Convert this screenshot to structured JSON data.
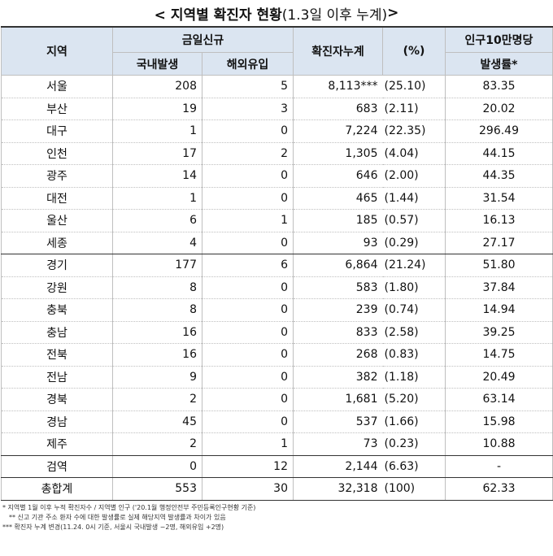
{
  "title": {
    "bold": "< 지역별 확진자 현황",
    "light": "(1.3일 이후 누계)",
    "tail": " >"
  },
  "header": {
    "region": "지역",
    "today_new": "금일신규",
    "domestic": "국내발생",
    "imported": "해외유입",
    "cumulative": "확진자누계",
    "percent": "(%)",
    "rate_line1": "인구10만명당",
    "rate_line2": "발생률*"
  },
  "rows": [
    {
      "region": "서울",
      "domestic": "208",
      "imported": "5",
      "cumulative": "8,113***",
      "percent": "(25.10)",
      "rate": "83.35"
    },
    {
      "region": "부산",
      "domestic": "19",
      "imported": "3",
      "cumulative": "683",
      "percent": "(2.11)",
      "rate": "20.02"
    },
    {
      "region": "대구",
      "domestic": "1",
      "imported": "0",
      "cumulative": "7,224",
      "percent": "(22.35)",
      "rate": "296.49"
    },
    {
      "region": "인천",
      "domestic": "17",
      "imported": "2",
      "cumulative": "1,305",
      "percent": "(4.04)",
      "rate": "44.15"
    },
    {
      "region": "광주",
      "domestic": "14",
      "imported": "0",
      "cumulative": "646",
      "percent": "(2.00)",
      "rate": "44.35"
    },
    {
      "region": "대전",
      "domestic": "1",
      "imported": "0",
      "cumulative": "465",
      "percent": "(1.44)",
      "rate": "31.54"
    },
    {
      "region": "울산",
      "domestic": "6",
      "imported": "1",
      "cumulative": "185",
      "percent": "(0.57)",
      "rate": "16.13"
    },
    {
      "region": "세종",
      "domestic": "4",
      "imported": "0",
      "cumulative": "93",
      "percent": "(0.29)",
      "rate": "27.17"
    },
    {
      "region": "경기",
      "domestic": "177",
      "imported": "6",
      "cumulative": "6,864",
      "percent": "(21.24)",
      "rate": "51.80"
    },
    {
      "region": "강원",
      "domestic": "8",
      "imported": "0",
      "cumulative": "583",
      "percent": "(1.80)",
      "rate": "37.84"
    },
    {
      "region": "충북",
      "domestic": "8",
      "imported": "0",
      "cumulative": "239",
      "percent": "(0.74)",
      "rate": "14.94"
    },
    {
      "region": "충남",
      "domestic": "16",
      "imported": "0",
      "cumulative": "833",
      "percent": "(2.58)",
      "rate": "39.25"
    },
    {
      "region": "전북",
      "domestic": "16",
      "imported": "0",
      "cumulative": "268",
      "percent": "(0.83)",
      "rate": "14.75"
    },
    {
      "region": "전남",
      "domestic": "9",
      "imported": "0",
      "cumulative": "382",
      "percent": "(1.18)",
      "rate": "20.49"
    },
    {
      "region": "경북",
      "domestic": "2",
      "imported": "0",
      "cumulative": "1,681",
      "percent": "(5.20)",
      "rate": "63.14"
    },
    {
      "region": "경남",
      "domestic": "45",
      "imported": "0",
      "cumulative": "537",
      "percent": "(1.66)",
      "rate": "15.98"
    },
    {
      "region": "제주",
      "domestic": "2",
      "imported": "1",
      "cumulative": "73",
      "percent": "(0.23)",
      "rate": "10.88"
    },
    {
      "region": "검역",
      "domestic": "0",
      "imported": "12",
      "cumulative": "2,144",
      "percent": "(6.63)",
      "rate": "-"
    },
    {
      "region": "총합계",
      "domestic": "553",
      "imported": "30",
      "cumulative": "32,318",
      "percent": "(100)",
      "rate": "62.33"
    }
  ],
  "group_end_indices": [
    7,
    16,
    17
  ],
  "notes": [
    "* 지역별 1월 이후 누적 확진자수 / 지역별 인구 ('20.1월 행정안전부 주민등록인구현황 기준)",
    "** 신고 기관 주소 환자 수에 대한 발생률로 실제 해당지역 발생률과 차이가 있음",
    "*** 확진자 누계 변경(11.24. 0시 기준, 서울시 국내발생 −2명, 해외유입 +2명)"
  ]
}
